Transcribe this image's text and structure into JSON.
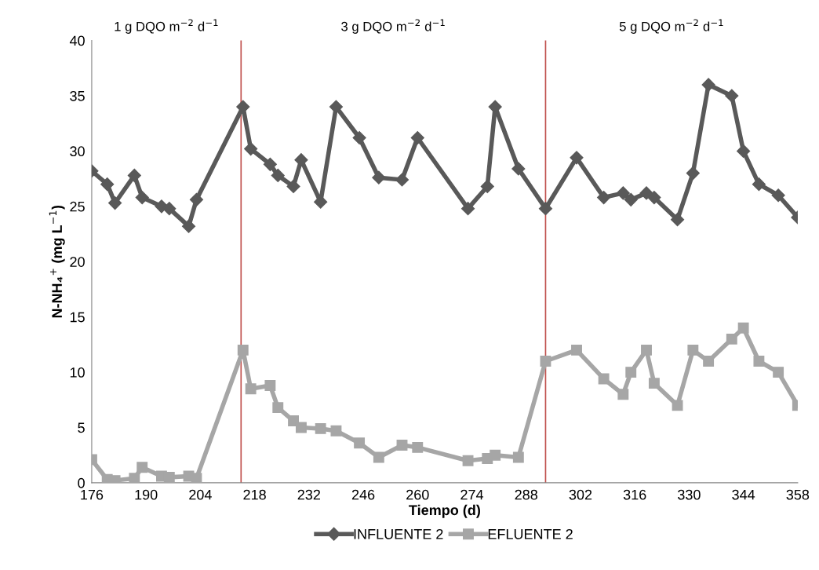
{
  "chart_data": {
    "type": "line",
    "xlabel": "Tiempo (d)",
    "ylabel": "N-NH₄$^{+}$ (mg L$^{−1}$)",
    "x": [
      176,
      180,
      182,
      187,
      189,
      194,
      196,
      201,
      203,
      215,
      217,
      222,
      224,
      228,
      230,
      235,
      239,
      245,
      250,
      256,
      260,
      273,
      278,
      280,
      286,
      293,
      301,
      308,
      313,
      315,
      319,
      321,
      327,
      331,
      335,
      341,
      344,
      348,
      353,
      358
    ],
    "series": [
      {
        "name": "INFLUENTE 2",
        "color": "#595959",
        "marker": "diamond",
        "values": [
          28.2,
          27.0,
          25.3,
          27.8,
          25.8,
          25.0,
          24.8,
          23.2,
          25.6,
          34,
          30.2,
          28.8,
          27.8,
          26.8,
          29.2,
          25.4,
          34,
          31.2,
          27.6,
          27.4,
          31.2,
          24.8,
          26.8,
          34,
          28.4,
          24.8,
          29.4,
          25.8,
          26.2,
          25.6,
          26.2,
          25.8,
          23.8,
          28,
          36,
          35,
          30,
          27,
          26,
          24
        ]
      },
      {
        "name": "EFLUENTE 2",
        "color": "#a6a6a6",
        "marker": "square",
        "values": [
          2.1,
          0.3,
          0.2,
          0.4,
          1.4,
          0.6,
          0.5,
          0.6,
          0.4,
          12,
          8.5,
          8.8,
          6.8,
          5.6,
          5.0,
          4.9,
          4.7,
          3.6,
          2.3,
          3.4,
          3.2,
          2.0,
          2.2,
          2.5,
          2.3,
          11,
          12,
          9.4,
          8,
          10,
          12,
          9,
          7,
          12,
          11,
          13,
          14,
          11,
          10,
          7
        ]
      }
    ],
    "xlim": [
      176,
      358
    ],
    "xticks": [
      176,
      190,
      204,
      218,
      232,
      246,
      260,
      274,
      288,
      302,
      316,
      330,
      344,
      358
    ],
    "ylim": [
      0,
      40
    ],
    "yticks": [
      0,
      5,
      10,
      15,
      20,
      25,
      30,
      35,
      40
    ],
    "ref_lines": [
      {
        "axis": "x",
        "value": 214.5,
        "color": "#c0504d"
      },
      {
        "axis": "x",
        "value": 293,
        "color": "#c0504d"
      }
    ],
    "annotations": [
      "1 g DQO m$^{−2}$ d$^{−1}$",
      "3 g DQO m$^{−2}$ d$^{−1}$",
      "5 g DQO m$^{−2}$ d$^{−1}$"
    ],
    "grid": false,
    "legend": "bottom",
    "line_style": "solid"
  }
}
